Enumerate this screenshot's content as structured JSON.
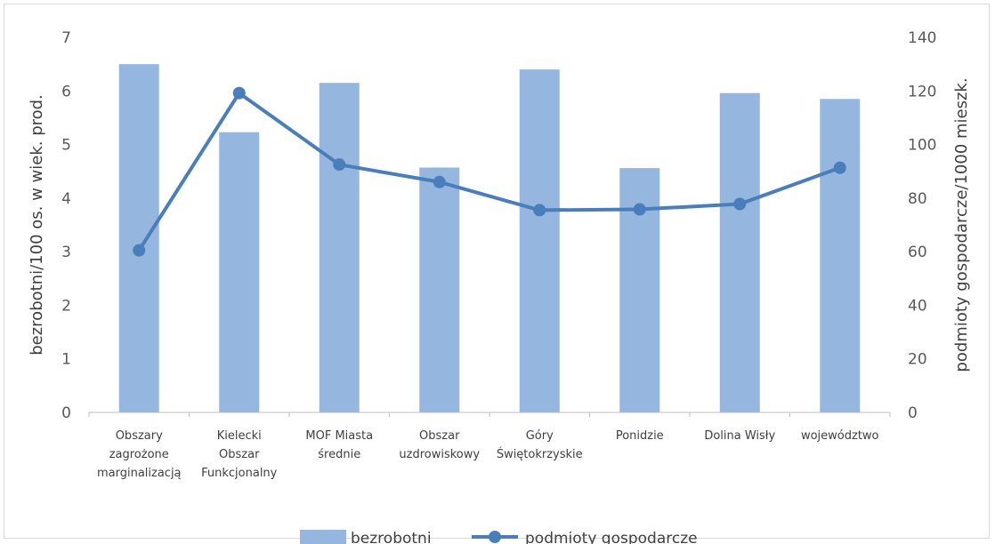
{
  "chart_data": {
    "type": "bar",
    "categories": [
      [
        "Obszary",
        "zagrożone",
        "marginalizacją"
      ],
      [
        "Kielecki",
        "Obszar",
        "Funkcjonalny"
      ],
      [
        "MOF Miasta",
        "średnie"
      ],
      [
        "Obszar",
        "uzdrowiskowy"
      ],
      [
        "Góry",
        "Świętokrzyskie"
      ],
      [
        "Ponidzie"
      ],
      [
        "Dolina Wisły"
      ],
      [
        "województwo"
      ]
    ],
    "series": [
      {
        "name": "bezrobotni",
        "type": "bar",
        "axis": "left",
        "color": "#95b7df",
        "values": [
          6.5,
          5.23,
          6.15,
          4.57,
          6.4,
          4.56,
          5.96,
          5.85
        ]
      },
      {
        "name": "podmioty gospodarcze",
        "type": "line",
        "axis": "right",
        "color": "#4a7ebb",
        "values": [
          60.5,
          119.2,
          92.5,
          86.0,
          75.5,
          75.8,
          77.8,
          91.3
        ]
      }
    ],
    "y_left": {
      "label": "bezrobotni/100 os. w wiek. prod.",
      "min": 0,
      "max": 7,
      "ticks": [
        0,
        1,
        2,
        3,
        4,
        5,
        6,
        7
      ]
    },
    "y_right": {
      "label": "podmioty gospodarcze/1000 mieszk.",
      "min": 0,
      "max": 140,
      "ticks": [
        0,
        20,
        40,
        60,
        80,
        100,
        120,
        140
      ]
    },
    "grid": false,
    "legend": "bottom"
  }
}
